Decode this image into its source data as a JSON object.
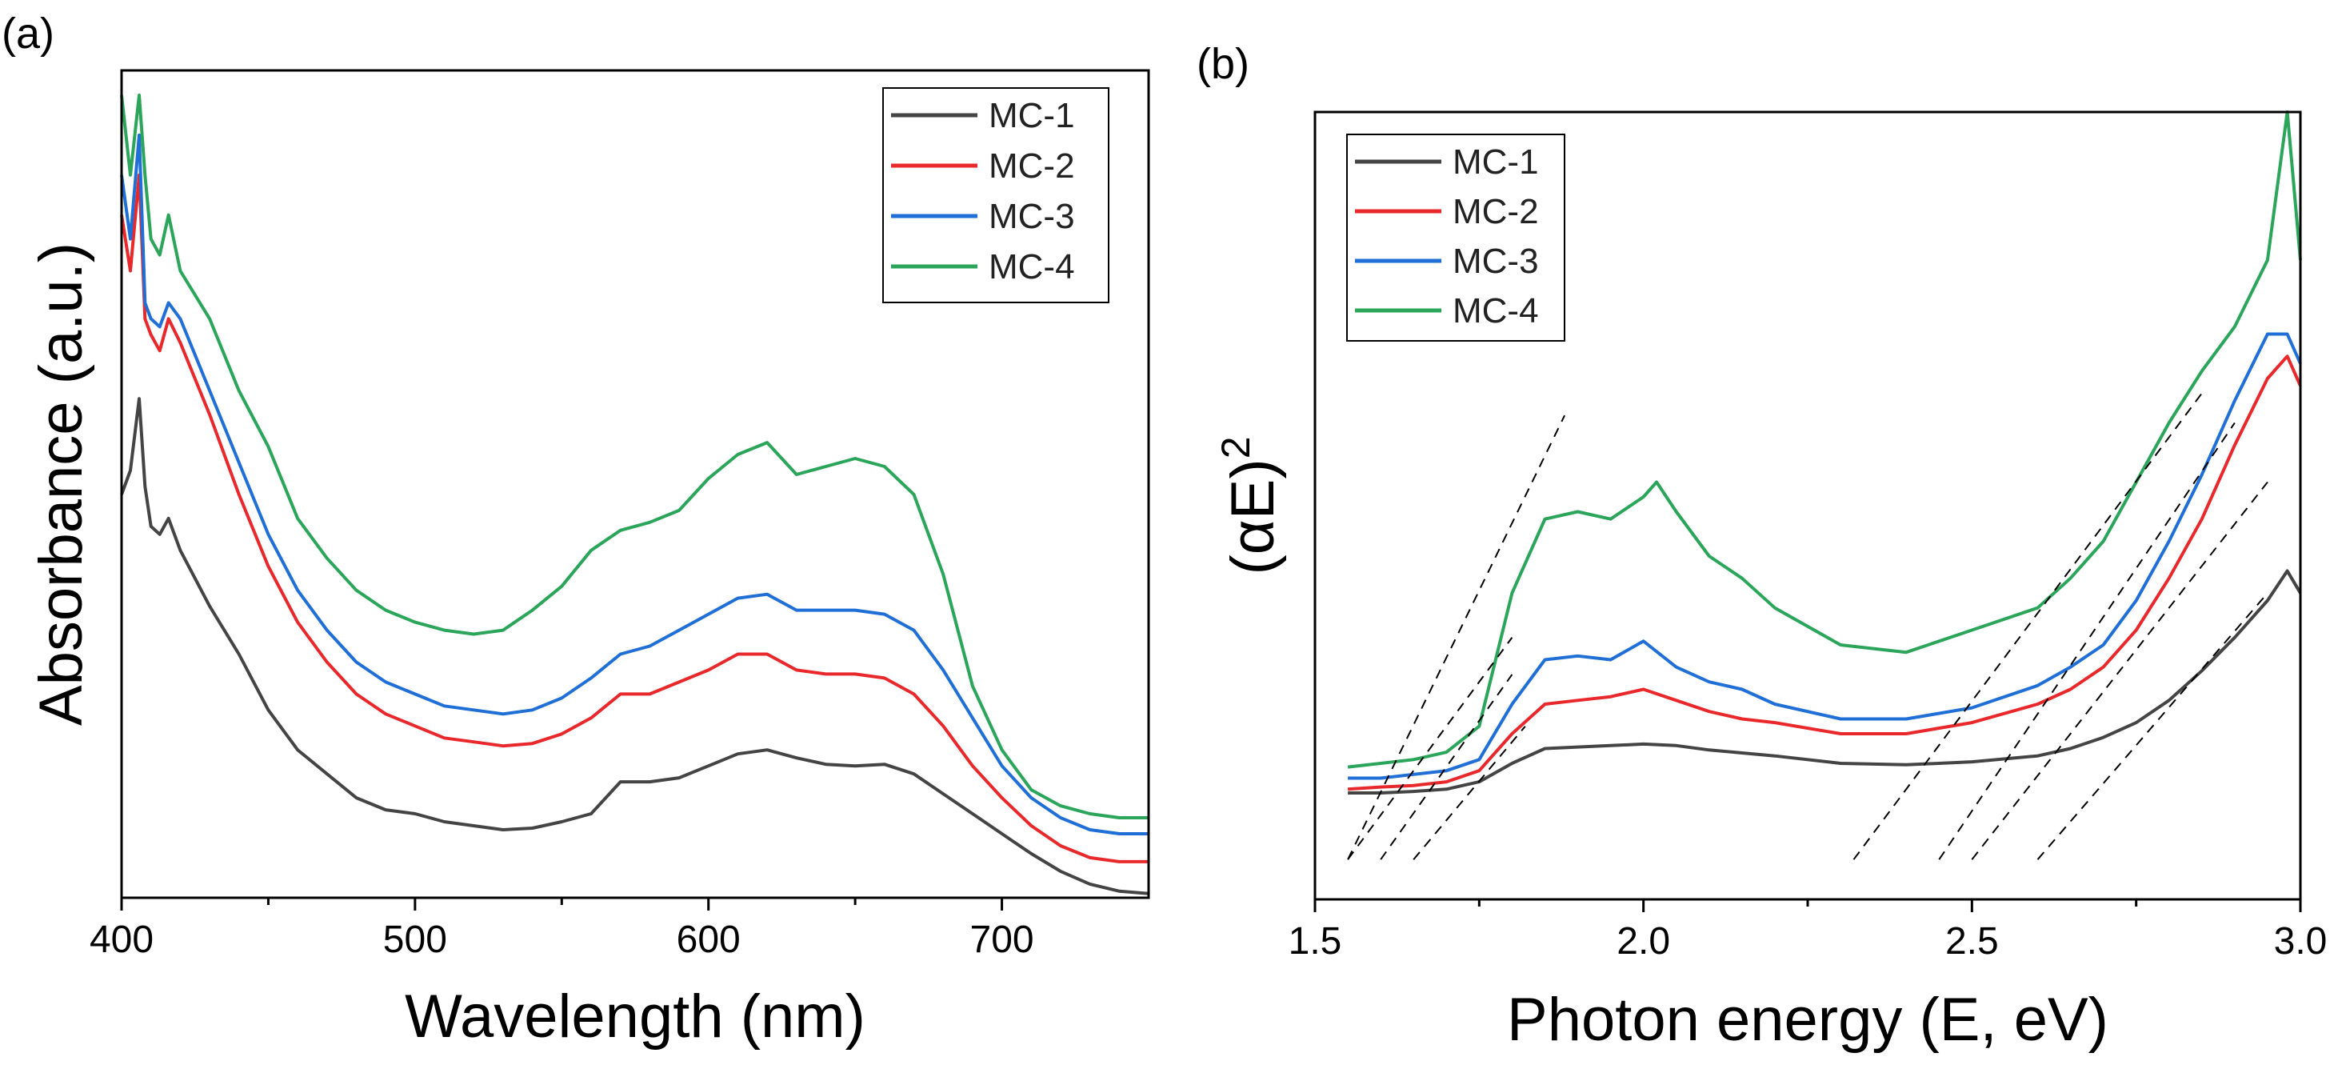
{
  "chart_data": [
    {
      "panel": "(a)",
      "type": "line",
      "xlabel": "Wavelength (nm)",
      "ylabel": "Absorbance (a.u.)",
      "xlim": [
        400,
        750
      ],
      "ylim": [
        0,
        1
      ],
      "xticks": [
        400,
        500,
        600,
        700
      ],
      "yticks_shown": false,
      "legend_position": "top-right",
      "series": [
        {
          "name": "MC-1",
          "color": "#444444",
          "x": [
            400,
            403,
            406,
            408,
            410,
            413,
            416,
            420,
            430,
            440,
            450,
            460,
            470,
            480,
            490,
            500,
            510,
            520,
            530,
            540,
            550,
            560,
            570,
            580,
            590,
            600,
            610,
            620,
            630,
            640,
            650,
            660,
            670,
            680,
            690,
            700,
            710,
            720,
            730,
            740,
            750
          ],
          "y": [
            0.5,
            0.53,
            0.62,
            0.51,
            0.46,
            0.45,
            0.47,
            0.43,
            0.36,
            0.3,
            0.23,
            0.18,
            0.15,
            0.12,
            0.105,
            0.1,
            0.09,
            0.085,
            0.08,
            0.082,
            0.09,
            0.1,
            0.14,
            0.14,
            0.145,
            0.16,
            0.175,
            0.18,
            0.17,
            0.162,
            0.16,
            0.162,
            0.15,
            0.125,
            0.1,
            0.075,
            0.05,
            0.028,
            0.012,
            0.003,
            0.0
          ]
        },
        {
          "name": "MC-2",
          "color": "#e8282b",
          "x": [
            400,
            403,
            406,
            408,
            410,
            413,
            416,
            420,
            430,
            440,
            450,
            460,
            470,
            480,
            490,
            500,
            510,
            520,
            530,
            540,
            550,
            560,
            570,
            580,
            590,
            600,
            610,
            620,
            630,
            640,
            650,
            660,
            670,
            680,
            690,
            700,
            710,
            720,
            730,
            740,
            750
          ],
          "y": [
            0.85,
            0.78,
            0.9,
            0.72,
            0.7,
            0.68,
            0.72,
            0.69,
            0.6,
            0.5,
            0.41,
            0.34,
            0.29,
            0.25,
            0.225,
            0.21,
            0.195,
            0.19,
            0.185,
            0.188,
            0.2,
            0.22,
            0.25,
            0.25,
            0.265,
            0.28,
            0.3,
            0.3,
            0.28,
            0.275,
            0.275,
            0.27,
            0.25,
            0.21,
            0.16,
            0.12,
            0.085,
            0.06,
            0.045,
            0.04,
            0.04
          ]
        },
        {
          "name": "MC-3",
          "color": "#1f6fd6",
          "x": [
            400,
            403,
            406,
            408,
            410,
            413,
            416,
            420,
            430,
            440,
            450,
            460,
            470,
            480,
            490,
            500,
            510,
            520,
            530,
            540,
            550,
            560,
            570,
            580,
            590,
            600,
            610,
            620,
            630,
            640,
            650,
            660,
            670,
            680,
            690,
            700,
            710,
            720,
            730,
            740,
            750
          ],
          "y": [
            0.9,
            0.82,
            0.95,
            0.74,
            0.72,
            0.71,
            0.74,
            0.72,
            0.63,
            0.54,
            0.45,
            0.38,
            0.33,
            0.29,
            0.265,
            0.25,
            0.235,
            0.23,
            0.225,
            0.23,
            0.245,
            0.27,
            0.3,
            0.31,
            0.33,
            0.35,
            0.37,
            0.375,
            0.355,
            0.355,
            0.355,
            0.35,
            0.33,
            0.28,
            0.22,
            0.16,
            0.12,
            0.095,
            0.08,
            0.075,
            0.075
          ]
        },
        {
          "name": "MC-4",
          "color": "#2aa55a",
          "x": [
            400,
            403,
            406,
            408,
            410,
            413,
            416,
            420,
            430,
            440,
            450,
            460,
            470,
            480,
            490,
            500,
            510,
            520,
            530,
            540,
            550,
            560,
            570,
            580,
            590,
            600,
            610,
            620,
            630,
            640,
            650,
            660,
            670,
            680,
            690,
            700,
            710,
            720,
            730,
            740,
            750
          ],
          "y": [
            1.0,
            0.9,
            1.0,
            0.9,
            0.82,
            0.8,
            0.85,
            0.78,
            0.72,
            0.63,
            0.56,
            0.47,
            0.42,
            0.38,
            0.355,
            0.34,
            0.33,
            0.325,
            0.33,
            0.355,
            0.385,
            0.43,
            0.455,
            0.465,
            0.48,
            0.52,
            0.55,
            0.565,
            0.525,
            0.535,
            0.545,
            0.535,
            0.5,
            0.4,
            0.26,
            0.18,
            0.13,
            0.11,
            0.1,
            0.095,
            0.095
          ]
        }
      ]
    },
    {
      "panel": "(b)",
      "type": "line",
      "xlabel": "Photon energy (E, eV)",
      "ylabel": "(αE)",
      "ylabel_superscript": "2",
      "xlim": [
        1.5,
        3.0
      ],
      "ylim": [
        0,
        1
      ],
      "xticks": [
        "1.5",
        "2.0",
        "2.5",
        "3.0"
      ],
      "yticks_shown": false,
      "legend_position": "top-left",
      "series": [
        {
          "name": "MC-1",
          "color": "#444444",
          "x": [
            1.55,
            1.6,
            1.65,
            1.7,
            1.75,
            1.8,
            1.85,
            1.9,
            1.95,
            2.0,
            2.05,
            2.1,
            2.15,
            2.2,
            2.3,
            2.4,
            2.5,
            2.6,
            2.65,
            2.7,
            2.75,
            2.8,
            2.85,
            2.9,
            2.95,
            2.98,
            3.0
          ],
          "y": [
            0.08,
            0.08,
            0.082,
            0.085,
            0.095,
            0.12,
            0.14,
            0.142,
            0.144,
            0.146,
            0.144,
            0.138,
            0.134,
            0.13,
            0.12,
            0.118,
            0.122,
            0.13,
            0.14,
            0.155,
            0.175,
            0.205,
            0.245,
            0.29,
            0.34,
            0.38,
            0.35
          ]
        },
        {
          "name": "MC-2",
          "color": "#e8282b",
          "x": [
            1.55,
            1.6,
            1.65,
            1.7,
            1.75,
            1.8,
            1.85,
            1.9,
            1.95,
            2.0,
            2.05,
            2.1,
            2.15,
            2.2,
            2.3,
            2.4,
            2.5,
            2.6,
            2.65,
            2.7,
            2.75,
            2.8,
            2.85,
            2.9,
            2.95,
            2.98,
            3.0
          ],
          "y": [
            0.085,
            0.088,
            0.09,
            0.095,
            0.11,
            0.16,
            0.2,
            0.205,
            0.21,
            0.22,
            0.205,
            0.19,
            0.18,
            0.175,
            0.16,
            0.16,
            0.175,
            0.2,
            0.22,
            0.25,
            0.3,
            0.37,
            0.45,
            0.55,
            0.64,
            0.67,
            0.63
          ]
        },
        {
          "name": "MC-3",
          "color": "#1f6fd6",
          "x": [
            1.55,
            1.6,
            1.65,
            1.7,
            1.75,
            1.8,
            1.85,
            1.9,
            1.95,
            2.0,
            2.05,
            2.1,
            2.15,
            2.2,
            2.3,
            2.4,
            2.5,
            2.6,
            2.65,
            2.7,
            2.75,
            2.8,
            2.85,
            2.9,
            2.95,
            2.98,
            3.0
          ],
          "y": [
            0.1,
            0.1,
            0.105,
            0.11,
            0.125,
            0.2,
            0.26,
            0.265,
            0.26,
            0.285,
            0.25,
            0.23,
            0.22,
            0.2,
            0.18,
            0.18,
            0.195,
            0.225,
            0.25,
            0.28,
            0.34,
            0.42,
            0.51,
            0.61,
            0.7,
            0.7,
            0.66
          ]
        },
        {
          "name": "MC-4",
          "color": "#2aa55a",
          "x": [
            1.55,
            1.6,
            1.65,
            1.7,
            1.75,
            1.8,
            1.85,
            1.9,
            1.95,
            2.0,
            2.02,
            2.05,
            2.1,
            2.15,
            2.2,
            2.3,
            2.4,
            2.5,
            2.6,
            2.65,
            2.7,
            2.75,
            2.8,
            2.85,
            2.9,
            2.95,
            2.98,
            3.0
          ],
          "y": [
            0.115,
            0.12,
            0.125,
            0.135,
            0.17,
            0.35,
            0.45,
            0.46,
            0.45,
            0.48,
            0.5,
            0.46,
            0.4,
            0.37,
            0.33,
            0.28,
            0.27,
            0.3,
            0.33,
            0.37,
            0.42,
            0.5,
            0.58,
            0.65,
            0.71,
            0.8,
            1.0,
            0.8
          ]
        }
      ],
      "tangent_lines": [
        {
          "x": [
            1.55,
            1.88
          ],
          "y": [
            -0.01,
            0.59
          ]
        },
        {
          "x": [
            1.55,
            1.8
          ],
          "y": [
            -0.01,
            0.29
          ]
        },
        {
          "x": [
            1.6,
            1.8
          ],
          "y": [
            -0.01,
            0.24
          ]
        },
        {
          "x": [
            1.65,
            1.82
          ],
          "y": [
            -0.01,
            0.17
          ]
        },
        {
          "x": [
            2.32,
            2.85
          ],
          "y": [
            -0.01,
            0.62
          ]
        },
        {
          "x": [
            2.45,
            2.9
          ],
          "y": [
            -0.01,
            0.58
          ]
        },
        {
          "x": [
            2.5,
            2.95
          ],
          "y": [
            -0.01,
            0.5
          ]
        },
        {
          "x": [
            2.6,
            2.95
          ],
          "y": [
            -0.01,
            0.35
          ]
        }
      ]
    }
  ]
}
